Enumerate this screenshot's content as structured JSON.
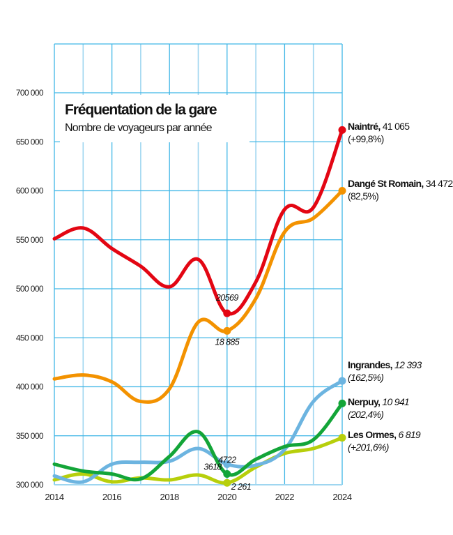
{
  "chart_data": {
    "type": "line",
    "title": "Fréquentation de la gare",
    "subtitle": "Nombre de voyageurs par année",
    "xlabel": "",
    "ylabel": "",
    "x": [
      2014,
      2015,
      2016,
      2017,
      2018,
      2019,
      2020,
      2021,
      2022,
      2023,
      2024
    ],
    "xlim": [
      2014,
      2024
    ],
    "ylim": [
      300000,
      700000
    ],
    "xticks": [
      "2014",
      "2016",
      "2018",
      "2020",
      "2022",
      "2024"
    ],
    "yticks": [
      "300 000",
      "350 000",
      "400 000",
      "450 000",
      "500 000",
      "550 000",
      "600 000",
      "650 000",
      "700 000"
    ],
    "ytick_values": [
      300000,
      350000,
      400000,
      450000,
      500000,
      550000,
      600000,
      650000,
      700000
    ],
    "grid": true,
    "series": [
      {
        "name": "Naintré",
        "color": "#e30613",
        "values": [
          551000,
          562000,
          541000,
          523000,
          502000,
          530000,
          475000,
          507000,
          581000,
          583000,
          662000
        ],
        "label_value": "41 065",
        "label_change": "(+99,8%)",
        "value_italic": false
      },
      {
        "name": "Dangé St Romain",
        "color": "#f39200",
        "values": [
          408000,
          412000,
          405000,
          385000,
          398000,
          466000,
          457000,
          490000,
          558000,
          572000,
          600000
        ],
        "label_value": "34 472",
        "label_change": "(82,5%)",
        "value_italic": false
      },
      {
        "name": "Ingrandes",
        "color": "#6cb4e0",
        "values": [
          309000,
          303000,
          321000,
          323000,
          324000,
          337000,
          321000,
          320000,
          336000,
          385000,
          406000
        ],
        "label_value": "12 393",
        "label_change": "(162,5%)",
        "value_italic": true
      },
      {
        "name": "Nerpuy",
        "color": "#13a538",
        "values": [
          321000,
          314000,
          311000,
          306000,
          329000,
          354000,
          311000,
          326000,
          339000,
          346000,
          383000
        ],
        "label_value": "10 941",
        "label_change": "(202,4%)",
        "value_italic": true
      },
      {
        "name": "Les Ormes",
        "color": "#b7cf0b",
        "values": [
          305000,
          311000,
          303000,
          307000,
          305000,
          310000,
          302000,
          318000,
          332000,
          337000,
          348000
        ],
        "label_value": "6 819",
        "label_change": "(+201,6%)",
        "value_italic": true
      }
    ],
    "annotations": [
      {
        "text": "20569",
        "x": 2020,
        "series": "Naintré",
        "position": "above"
      },
      {
        "text": "18 885",
        "x": 2020,
        "series": "Dangé St Romain",
        "position": "below"
      },
      {
        "text": "4722",
        "x": 2020,
        "series": "Ingrandes",
        "position": "above"
      },
      {
        "text": "3618",
        "x": 2020,
        "series": "Nerpuy",
        "position": "left"
      },
      {
        "text": "2 261",
        "x": 2020,
        "series": "Les Ormes",
        "position": "right"
      }
    ],
    "marked_points": [
      2020,
      2024
    ],
    "grid_color": "#3fb6e6",
    "legend": "right"
  }
}
